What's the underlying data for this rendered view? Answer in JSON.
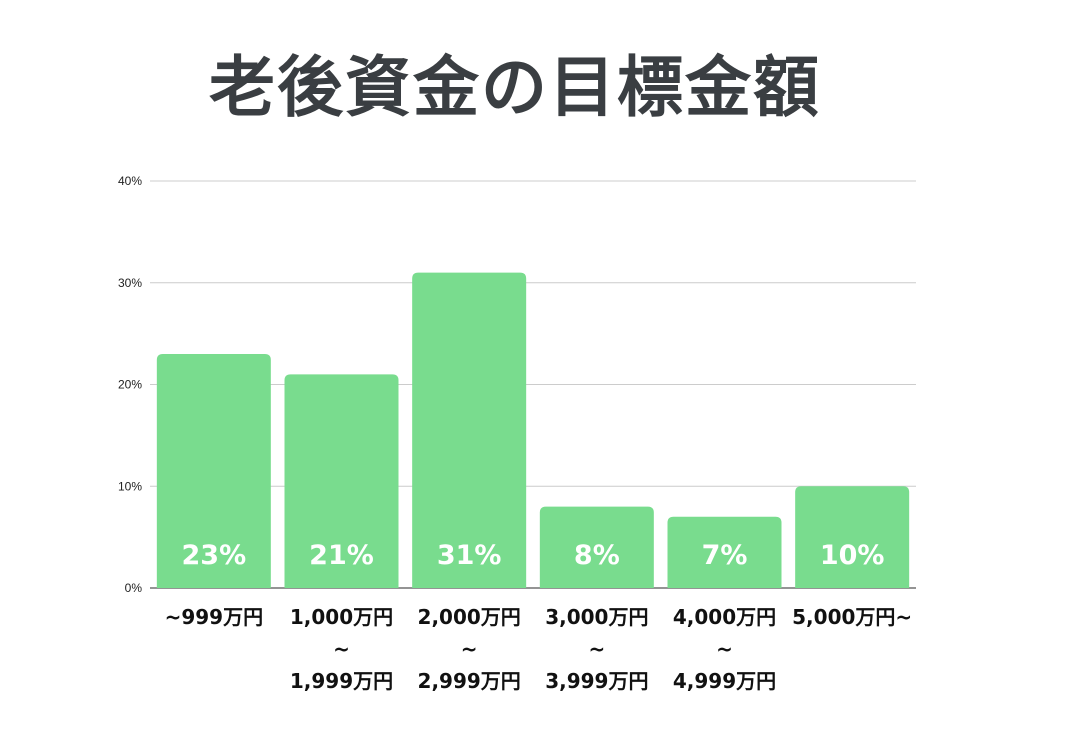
{
  "chart_data": {
    "type": "bar",
    "title": "老後資金の目標金額",
    "categories": [
      [
        "~999万円"
      ],
      [
        "1,000万円",
        "~",
        "1,999万円"
      ],
      [
        "2,000万円",
        "~",
        "2,999万円"
      ],
      [
        "3,000万円",
        "~",
        "3,999万円"
      ],
      [
        "4,000万円",
        "~",
        "4,999万円"
      ],
      [
        "5,000万円~"
      ]
    ],
    "values": [
      23,
      21,
      31,
      8,
      7,
      10
    ],
    "data_labels": [
      "23%",
      "21%",
      "31%",
      "8%",
      "7%",
      "10%"
    ],
    "yticks": [
      "0%",
      "10%",
      "20%",
      "30%",
      "40%"
    ],
    "ylim": [
      0,
      40
    ],
    "grid": true,
    "xlabel": "",
    "ylabel": "",
    "colors": {
      "bar": "#79dc8e",
      "grid": "#cccccc",
      "title": "#3a3e42"
    }
  }
}
